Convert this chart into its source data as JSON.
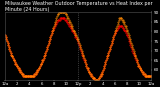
{
  "background_color": "#000000",
  "plot_bg_color": "#000000",
  "grid_color": "#444444",
  "line1_color": "#ff0000",
  "line2_color": "#ff8800",
  "marker_size": 0.8,
  "ylim": [
    55,
    90
  ],
  "xlim": [
    0,
    1440
  ],
  "ylabel_fontsize": 3.0,
  "xlabel_fontsize": 2.8,
  "yticks": [
    60,
    65,
    70,
    75,
    80,
    85,
    90
  ],
  "ytick_labels": [
    "60",
    "65",
    "70",
    "75",
    "80",
    "85",
    "90"
  ],
  "xticks": [
    0,
    120,
    240,
    360,
    480,
    600,
    720,
    840,
    960,
    1080,
    1200,
    1320,
    1440
  ],
  "xtick_labels": [
    "12a",
    "2",
    "4",
    "6",
    "8",
    "10",
    "12p",
    "2",
    "4",
    "6",
    "8",
    "10",
    "12a"
  ],
  "vline_x": 720,
  "vline_color": "#888888",
  "title": "Milwaukee Weather Outdoor Temperature vs Heat Index per Minute (24 Hours)",
  "title_fontsize": 3.5,
  "title_color": "#ffffff",
  "temp_data": [
    78,
    77,
    76,
    75,
    74,
    73,
    72,
    71,
    70,
    69,
    68,
    67,
    67,
    66,
    65,
    65,
    64,
    63,
    63,
    62,
    62,
    61,
    61,
    60,
    60,
    59,
    59,
    58,
    58,
    58,
    57,
    57,
    57,
    57,
    57,
    57,
    57,
    57,
    57,
    57,
    57,
    57,
    57,
    57,
    57,
    57,
    57,
    57,
    58,
    58,
    58,
    59,
    59,
    60,
    60,
    61,
    61,
    62,
    63,
    63,
    64,
    65,
    65,
    66,
    67,
    68,
    69,
    70,
    71,
    72,
    73,
    74,
    75,
    76,
    77,
    78,
    79,
    80,
    81,
    82,
    82,
    83,
    84,
    84,
    85,
    85,
    86,
    86,
    86,
    86,
    87,
    87,
    87,
    87,
    87,
    87,
    87,
    87,
    86,
    86,
    86,
    85,
    85,
    84,
    84,
    83,
    83,
    82,
    82,
    81,
    80,
    80,
    79,
    79,
    78,
    77,
    77,
    76,
    76,
    75,
    74,
    73,
    72,
    71,
    70,
    69,
    68,
    67,
    66,
    65,
    65,
    64,
    63,
    62,
    61,
    61,
    60,
    59,
    59,
    58,
    58,
    57,
    57,
    56,
    56,
    56,
    56,
    55,
    55,
    55,
    55,
    55,
    55,
    56,
    56,
    57,
    57,
    58,
    58,
    59,
    60,
    61,
    62,
    63,
    64,
    65,
    66,
    67,
    68,
    69,
    70,
    71,
    72,
    73,
    74,
    75,
    76,
    77,
    78,
    79,
    79,
    80,
    81,
    81,
    82,
    82,
    83,
    83,
    83,
    83,
    83,
    83,
    82,
    82,
    81,
    81,
    80,
    80,
    79,
    78,
    78,
    77,
    76,
    75,
    74,
    73,
    72,
    71,
    70,
    69,
    69,
    68,
    67,
    66,
    65,
    65,
    64,
    63,
    62,
    62,
    61,
    61,
    60,
    60,
    59,
    59,
    58,
    58,
    58,
    57,
    57,
    57,
    57,
    57,
    57,
    57,
    57,
    57,
    57,
    57
  ],
  "heat_data": [
    78,
    77,
    76,
    75,
    74,
    73,
    72,
    71,
    70,
    69,
    68,
    67,
    67,
    66,
    65,
    65,
    64,
    63,
    63,
    62,
    62,
    61,
    61,
    60,
    60,
    59,
    59,
    58,
    58,
    58,
    57,
    57,
    57,
    57,
    57,
    57,
    57,
    57,
    57,
    57,
    57,
    57,
    57,
    57,
    57,
    57,
    57,
    57,
    58,
    58,
    58,
    59,
    59,
    60,
    60,
    61,
    61,
    62,
    63,
    63,
    64,
    65,
    65,
    66,
    67,
    68,
    69,
    70,
    71,
    72,
    73,
    74,
    75,
    76,
    77,
    78,
    79,
    80,
    81,
    82,
    83,
    84,
    85,
    86,
    87,
    88,
    89,
    89,
    90,
    90,
    90,
    90,
    90,
    90,
    90,
    90,
    90,
    90,
    90,
    89,
    89,
    88,
    87,
    87,
    86,
    85,
    85,
    84,
    83,
    83,
    82,
    81,
    80,
    80,
    79,
    78,
    78,
    77,
    76,
    76,
    75,
    74,
    73,
    72,
    71,
    70,
    69,
    68,
    67,
    66,
    65,
    64,
    63,
    62,
    61,
    61,
    60,
    59,
    59,
    58,
    58,
    57,
    57,
    56,
    56,
    56,
    56,
    55,
    55,
    55,
    55,
    55,
    55,
    56,
    56,
    57,
    57,
    58,
    58,
    59,
    60,
    61,
    62,
    63,
    64,
    65,
    66,
    67,
    68,
    69,
    70,
    71,
    72,
    73,
    74,
    75,
    76,
    77,
    78,
    79,
    80,
    81,
    82,
    83,
    84,
    85,
    86,
    87,
    87,
    87,
    87,
    86,
    86,
    85,
    85,
    84,
    83,
    83,
    82,
    81,
    80,
    79,
    78,
    77,
    76,
    75,
    74,
    73,
    72,
    71,
    70,
    69,
    68,
    67,
    66,
    65,
    64,
    63,
    62,
    62,
    61,
    61,
    60,
    60,
    59,
    59,
    58,
    58,
    58,
    57,
    57,
    57,
    57,
    57,
    57,
    57,
    57,
    57,
    57,
    57
  ]
}
